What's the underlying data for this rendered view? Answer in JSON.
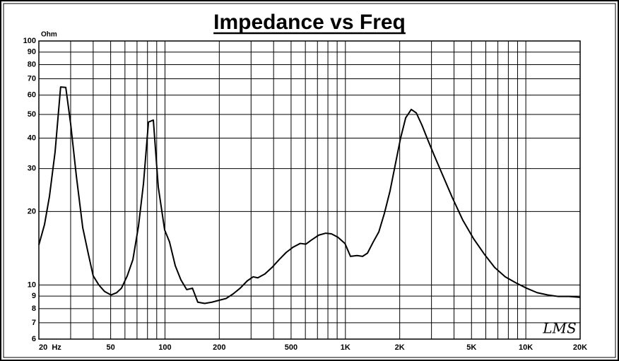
{
  "chart_data": {
    "type": "line",
    "title": "Impedance vs Freq",
    "y_label": "Ohm",
    "watermark": "LMS",
    "x_scale": "log",
    "y_scale": "log",
    "grid": true,
    "color": "#000000",
    "xlim": [
      20,
      20000
    ],
    "ylim": [
      6,
      100
    ],
    "xticks": [
      {
        "value": 20,
        "label": "20  Hz"
      },
      50,
      100,
      200,
      500,
      {
        "value": 1000,
        "label": "1K"
      },
      {
        "value": 2000,
        "label": "2K"
      },
      {
        "value": 5000,
        "label": "5K"
      },
      {
        "value": 10000,
        "label": "10K"
      },
      {
        "value": 20000,
        "label": "20K"
      }
    ],
    "xgrid": [
      30,
      40,
      60,
      70,
      80,
      90,
      300,
      400,
      600,
      700,
      800,
      900,
      3000,
      4000,
      6000,
      7000,
      8000,
      9000
    ],
    "yticks": [
      6,
      7,
      8,
      9,
      10,
      20,
      30,
      40,
      50,
      60,
      70,
      80,
      90,
      100
    ],
    "x": [
      20,
      21.5,
      22.9,
      24.6,
      26.4,
      28.2,
      30,
      32.3,
      35,
      37.6,
      40,
      43,
      46.3,
      50.2,
      54,
      57.4,
      61.8,
      66.4,
      71.3,
      76,
      81,
      86.2,
      91.8,
      99.6,
      106,
      114,
      122.5,
      132,
      142,
      152,
      166,
      182,
      205,
      218,
      239,
      261,
      286,
      308,
      327,
      358,
      392,
      429,
      470,
      514,
      562,
      604,
      650,
      711,
      778,
      837,
      908,
      994,
      1067,
      1159,
      1245,
      1325,
      1426,
      1532,
      1646,
      1768,
      1901,
      2024,
      2158,
      2318,
      2472,
      2656,
      2852,
      3120,
      3418,
      3914,
      4480,
      5128,
      5876,
      6714,
      7692,
      8811,
      10094,
      11549,
      13220,
      15156,
      17340,
      20000
    ],
    "values": [
      14.6,
      17.7,
      23.1,
      35.1,
      64.8,
      64.5,
      45.8,
      27.8,
      17.2,
      13.4,
      10.9,
      10.0,
      9.4,
      9.1,
      9.3,
      9.7,
      10.9,
      12.7,
      17.4,
      26,
      46.5,
      47.4,
      25.2,
      16.8,
      15,
      12,
      10.5,
      9.57,
      9.7,
      8.5,
      8.4,
      8.5,
      8.7,
      8.8,
      9.2,
      9.7,
      10.4,
      10.8,
      10.7,
      11.1,
      11.8,
      12.7,
      13.6,
      14.3,
      14.8,
      14.7,
      15.3,
      16.0,
      16.3,
      16.2,
      15.7,
      14.8,
      13.1,
      13.2,
      13.1,
      13.5,
      15,
      16.5,
      19.7,
      24.3,
      31.8,
      40.1,
      48.4,
      52.4,
      50.7,
      45.2,
      39.6,
      33.7,
      28.8,
      22.8,
      18.4,
      15.5,
      13.4,
      11.8,
      10.8,
      10.2,
      9.7,
      9.3,
      9.1,
      8.97,
      8.97,
      8.9
    ]
  }
}
